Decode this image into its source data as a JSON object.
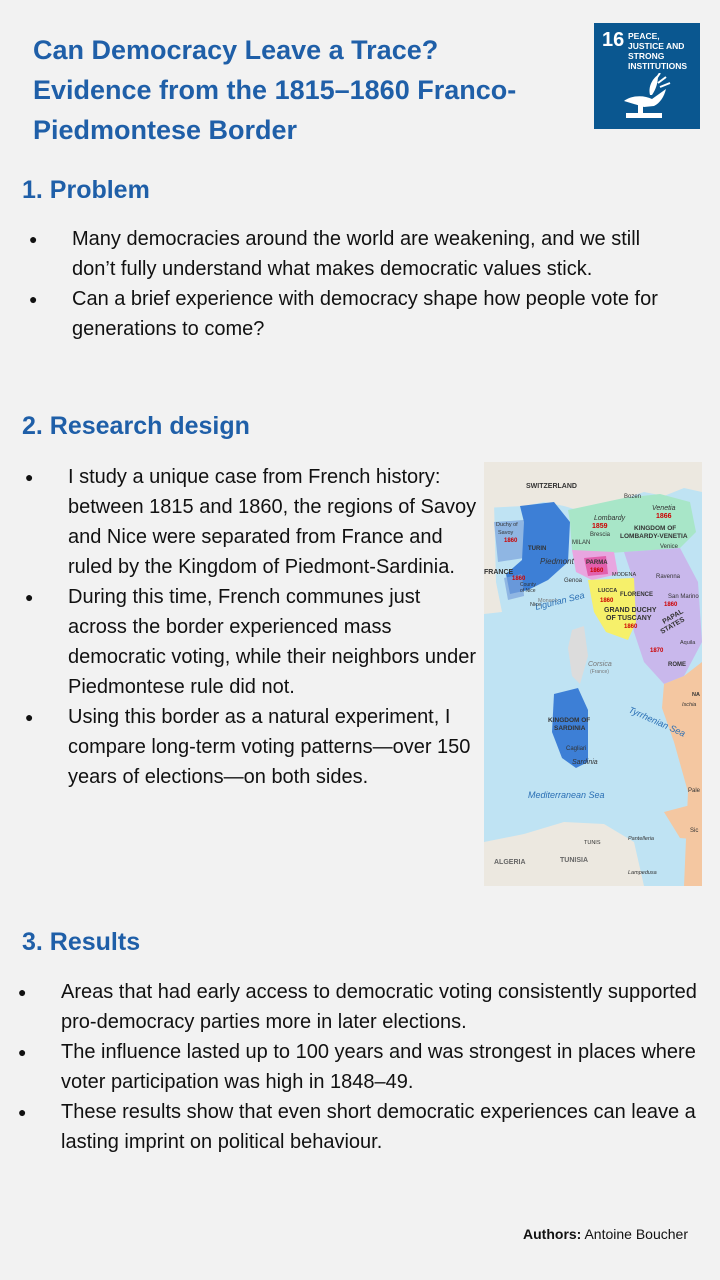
{
  "title_line1": "Can Democracy Leave a Trace?",
  "title_line2": "Evidence from the 1815–1860 Franco-Piedmontese Border",
  "sdg": {
    "number": "16",
    "text": "PEACE, JUSTICE AND STRONG INSTITUTIONS",
    "color": "#0a5790"
  },
  "problem": {
    "heading": "1. Problem",
    "items": [
      "Many democracies around the world are weakening, and we still don’t fully understand what makes democratic values stick.",
      "Can a brief experience with democracy shape how people vote for generations to come?"
    ]
  },
  "design": {
    "heading": "2. Research design",
    "items": [
      "I study a unique case from French history: between 1815 and 1860, the regions of Savoy and Nice were separated from France and ruled by the Kingdom of Piedmont-Sardinia.",
      "During this time, French communes just across the border experienced mass democratic voting, while their neighbors under Piedmontese rule did not.",
      "Using this border as a natural experiment, I compare long-term voting patterns—over 150 years of elections—on both sides."
    ]
  },
  "map": {
    "labels": {
      "switzerland": "SWITZERLAND",
      "bozen": "Bozen",
      "lombardy": "Lombardy",
      "y1859": "1859",
      "venetia": "Venetia",
      "y1866": "1866",
      "lv1": "KINGDOM OF",
      "lv2": "LOMBARDY-VENETIA",
      "brescia": "Brescia",
      "milan": "MILAN",
      "venice": "Venice",
      "savoy1": "Duchy of",
      "savoy2": "Savoy",
      "y1860a": "1860",
      "turin": "TURIN",
      "piedmont": "Piedmont",
      "parma": "PARMA",
      "y1860b": "1860",
      "modena": "MODENA",
      "ravenna": "Ravenna",
      "france": "FRANCE",
      "y1860c": "1860",
      "nice1": "County",
      "nice2": "of Nice",
      "genoa": "Genoa",
      "monaco": "Monaco",
      "lucca": "LUCCA",
      "florence": "FLORENCE",
      "y1860d": "1860",
      "san_marino": "San Marino",
      "y1860e": "1860",
      "ligurian": "Ligurian Sea",
      "nice": "Nice",
      "gd1": "GRAND DUCHY",
      "gd2": "OF TUSCANY",
      "y1860f": "1860",
      "papal1": "PAPAL",
      "papal2": "STATES",
      "y1870": "1870",
      "corsica": "Corsica",
      "france_small": "(France)",
      "rome": "ROME",
      "aquila": "Aquila",
      "ks1": "KINGDOM OF",
      "ks2": "SARDINIA",
      "tyrrhenian": "Tyrrhenian Sea",
      "cagliari": "Cagliari",
      "sardinia": "Sardinia",
      "mediterranean": "Mediterranean Sea",
      "tunis": "TUNIS",
      "pantelleria": "Pantelleria",
      "algeria": "ALGERIA",
      "tunisia": "TUNISIA",
      "lampedusa": "Lampedusa",
      "na": "NA",
      "ischia": "Ischia",
      "pale": "Pale",
      "sic": "Sic"
    }
  },
  "results": {
    "heading": "3. Results",
    "items": [
      "Areas that had early access to democratic voting consistently supported pro-democracy parties more in later elections.",
      "The influence lasted up to 100 years and was strongest in places where voter participation was high in 1848–49.",
      "These results show that even short democratic experiences can leave a lasting imprint on political behaviour."
    ]
  },
  "authors": {
    "label": "Authors:",
    "name": "Antoine Boucher"
  }
}
